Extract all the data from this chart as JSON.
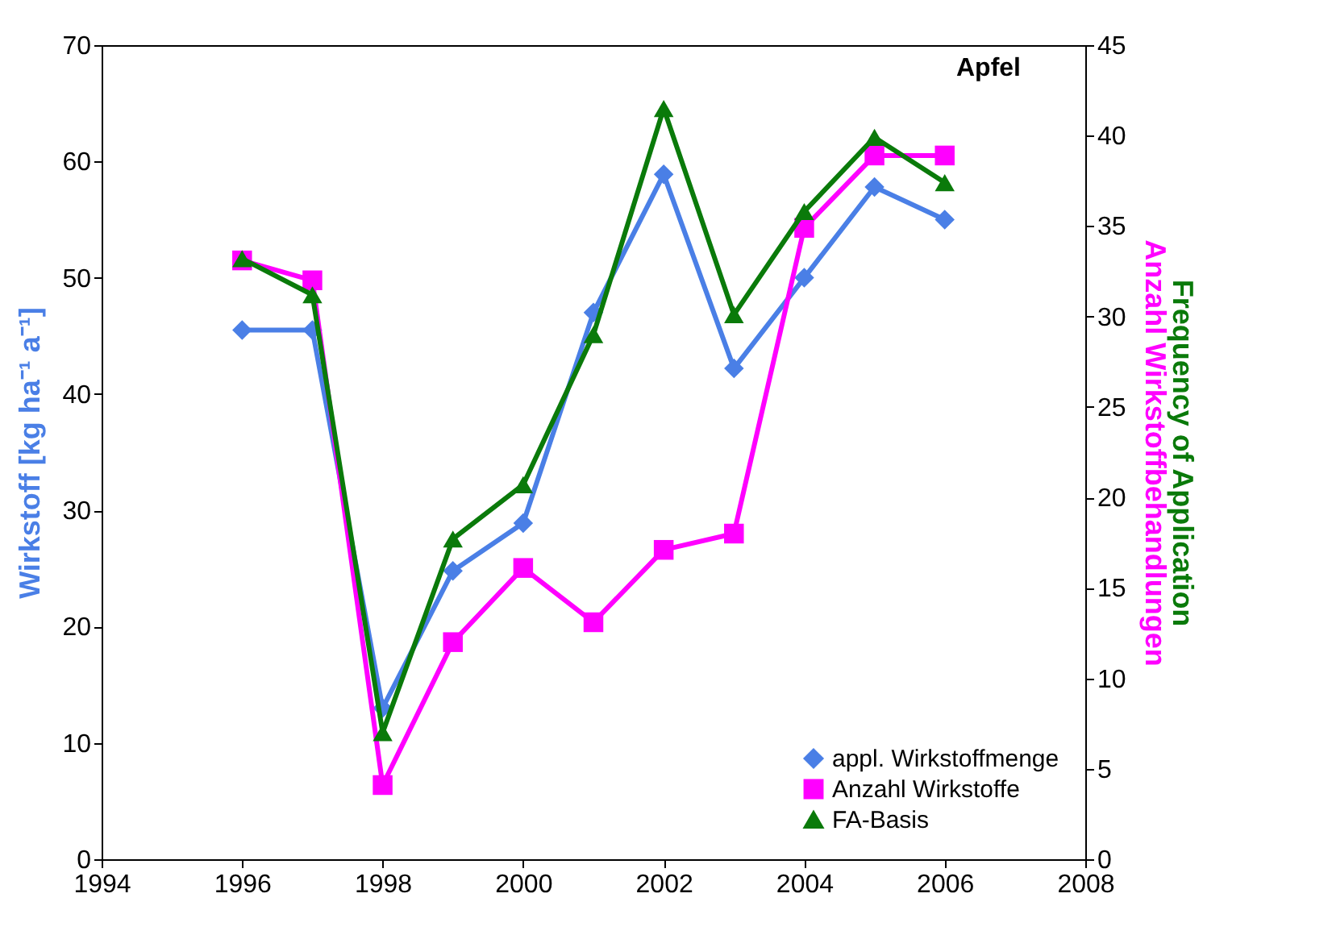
{
  "chart_data": {
    "type": "line",
    "title": "Apfel",
    "x": [
      1996,
      1997,
      1998,
      1999,
      2000,
      2001,
      2002,
      2003,
      2004,
      2005,
      2006
    ],
    "series": [
      {
        "name": "appl. Wirkstoffmenge",
        "color": "#4a7fe6",
        "marker": "diamond",
        "values": [
          45.5,
          45.5,
          13,
          24.8,
          28.9,
          47,
          58.9,
          42.2,
          50,
          57.8,
          55
        ]
      },
      {
        "name": "Anzahl Wirkstoffe",
        "color": "#ff00ff",
        "marker": "square",
        "axis": "y2",
        "values": [
          33.1,
          32.0,
          4.1,
          12.0,
          16.1,
          13.1,
          17.1,
          18.0,
          34.9,
          38.9,
          38.9
        ]
      },
      {
        "name": "FA-Basis",
        "color": "#0a7a0a",
        "marker": "triangle",
        "axis": "y2",
        "values": [
          33.2,
          31.2,
          7.0,
          17.7,
          20.7,
          29.0,
          41.5,
          30.1,
          35.8,
          39.9,
          37.4
        ]
      }
    ],
    "ylabel": "Wirkstoff [kg ha⁻¹ a⁻¹]",
    "y2label": [
      "Anzahl Wirkstoffbehandlungen",
      "Frequency of Application"
    ],
    "xlim": [
      1994,
      2008
    ],
    "xticks": [
      1994,
      1996,
      1998,
      2000,
      2002,
      2004,
      2006,
      2008
    ],
    "ylim": [
      0,
      70
    ],
    "yticks": [
      0,
      10,
      20,
      30,
      40,
      50,
      60,
      70
    ],
    "y2lim": [
      0,
      45
    ],
    "y2ticks": [
      0,
      5,
      10,
      15,
      20,
      25,
      30,
      35,
      40,
      45
    ],
    "legend": "bottom right",
    "grid": false,
    "line_style": "solid"
  }
}
